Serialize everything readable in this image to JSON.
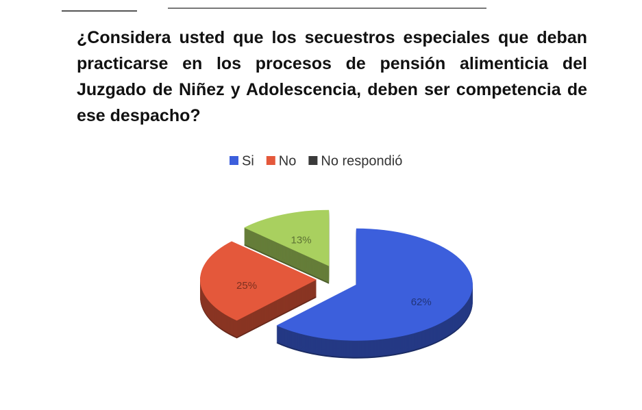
{
  "chart_data": {
    "type": "pie",
    "title": "¿Considera usted que los secuestros especiales que deban practicarse en los procesos de pensión alimenticia del Juzgado de Niñez y Adolescencia, deben ser competencia de ese despacho?",
    "categories": [
      "Si",
      "No",
      "No respondió"
    ],
    "values": [
      62,
      25,
      13
    ],
    "value_labels": [
      "62%",
      "25%",
      "13%"
    ],
    "colors": [
      "#3c5fdc",
      "#e4583b",
      "#a9d05f"
    ],
    "legend_colors": [
      "#3c5fdc",
      "#e4583b",
      "#3a3a3a"
    ],
    "legend": "top"
  }
}
